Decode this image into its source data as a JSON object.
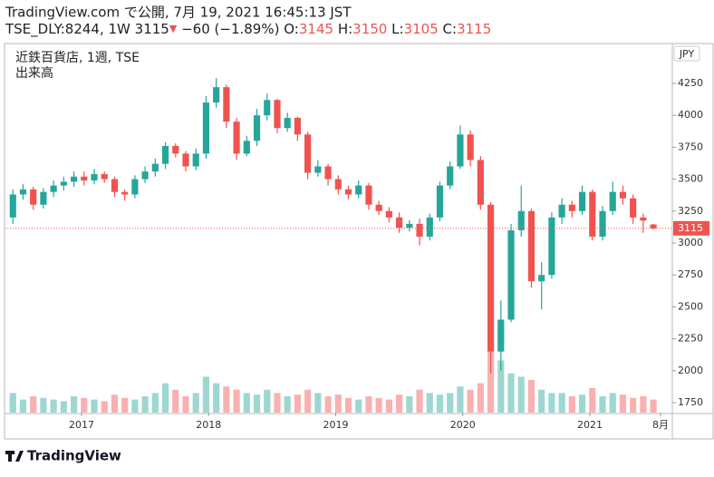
{
  "header": {
    "published": "TradingView.com で公開, 7月 19, 2021 16:45:13 JST",
    "symbol": "TSE_DLY:8244, 1W",
    "arrow": "▼",
    "change": "−60 (−1.89%)",
    "o": "O:",
    "h": "H:",
    "l": "L:",
    "c": "C:"
  },
  "chart_data": {
    "type": "candlestick",
    "title": "近鉄百貨店, 1週, TSE",
    "volume_label": "出来高",
    "currency": "JPY",
    "x": [
      2016.46,
      2016.54,
      2016.62,
      2016.7,
      2016.78,
      2016.86,
      2016.94,
      2017.02,
      2017.1,
      2017.18,
      2017.26,
      2017.34,
      2017.42,
      2017.5,
      2017.58,
      2017.66,
      2017.74,
      2017.82,
      2017.9,
      2017.98,
      2018.06,
      2018.14,
      2018.22,
      2018.3,
      2018.38,
      2018.46,
      2018.54,
      2018.62,
      2018.7,
      2018.78,
      2018.86,
      2018.94,
      2019.02,
      2019.1,
      2019.18,
      2019.26,
      2019.34,
      2019.42,
      2019.5,
      2019.58,
      2019.66,
      2019.74,
      2019.82,
      2019.9,
      2019.98,
      2020.06,
      2020.14,
      2020.22,
      2020.3,
      2020.38,
      2020.46,
      2020.54,
      2020.62,
      2020.7,
      2020.78,
      2020.86,
      2020.94,
      2021.02,
      2021.1,
      2021.18,
      2021.26,
      2021.34,
      2021.42,
      2021.5
    ],
    "open": [
      3200,
      3380,
      3420,
      3300,
      3400,
      3450,
      3480,
      3520,
      3490,
      3540,
      3500,
      3400,
      3380,
      3500,
      3560,
      3620,
      3760,
      3700,
      3600,
      3700,
      4100,
      4220,
      3950,
      3700,
      3800,
      4000,
      4120,
      3900,
      3980,
      3850,
      3550,
      3600,
      3500,
      3420,
      3380,
      3450,
      3300,
      3250,
      3200,
      3120,
      3150,
      3050,
      3200,
      3450,
      3600,
      3850,
      3650,
      3300,
      2150,
      2400,
      3100,
      3250,
      2700,
      2750,
      3200,
      3300,
      3250,
      3400,
      3050,
      3250,
      3400,
      3350,
      3200,
      3145
    ],
    "high": [
      3420,
      3460,
      3440,
      3430,
      3490,
      3520,
      3560,
      3560,
      3580,
      3560,
      3520,
      3420,
      3530,
      3600,
      3660,
      3790,
      3780,
      3720,
      3740,
      4150,
      4290,
      4240,
      3980,
      3840,
      4050,
      4170,
      4130,
      4020,
      3990,
      3870,
      3650,
      3620,
      3530,
      3450,
      3490,
      3470,
      3330,
      3280,
      3240,
      3180,
      3190,
      3230,
      3480,
      3640,
      3920,
      3880,
      3680,
      3320,
      2550,
      3150,
      3450,
      3270,
      2850,
      3240,
      3350,
      3330,
      3450,
      3420,
      3290,
      3480,
      3450,
      3380,
      3230,
      3150
    ],
    "low": [
      3150,
      3340,
      3260,
      3270,
      3360,
      3410,
      3440,
      3450,
      3460,
      3470,
      3360,
      3330,
      3350,
      3470,
      3520,
      3580,
      3670,
      3560,
      3570,
      3660,
      4060,
      3900,
      3650,
      3680,
      3760,
      3960,
      3860,
      3870,
      3800,
      3500,
      3520,
      3450,
      3380,
      3340,
      3350,
      3260,
      3220,
      3160,
      3080,
      3090,
      2980,
      3020,
      3170,
      3420,
      3580,
      3600,
      3260,
      1980,
      2000,
      2380,
      3050,
      2650,
      2480,
      2720,
      3150,
      3200,
      3220,
      3020,
      3020,
      3220,
      3300,
      3150,
      3080,
      3105
    ],
    "close": [
      3380,
      3420,
      3300,
      3400,
      3450,
      3480,
      3520,
      3490,
      3540,
      3500,
      3400,
      3380,
      3500,
      3560,
      3620,
      3760,
      3700,
      3600,
      3700,
      4100,
      4220,
      3950,
      3700,
      3800,
      4000,
      4120,
      3900,
      3980,
      3850,
      3550,
      3600,
      3500,
      3420,
      3380,
      3450,
      3300,
      3250,
      3200,
      3120,
      3150,
      3050,
      3200,
      3450,
      3600,
      3850,
      3650,
      3300,
      2150,
      2400,
      3100,
      3250,
      2700,
      2750,
      3200,
      3300,
      3250,
      3400,
      3050,
      3250,
      3400,
      3350,
      3200,
      3175,
      3115
    ],
    "volume": [
      60,
      40,
      50,
      45,
      40,
      35,
      50,
      45,
      40,
      35,
      55,
      45,
      40,
      50,
      60,
      90,
      70,
      50,
      60,
      110,
      90,
      80,
      70,
      60,
      55,
      70,
      60,
      50,
      55,
      70,
      60,
      50,
      55,
      45,
      40,
      50,
      45,
      40,
      55,
      50,
      70,
      60,
      55,
      60,
      80,
      70,
      90,
      200,
      160,
      120,
      110,
      100,
      70,
      60,
      60,
      50,
      55,
      75,
      50,
      60,
      55,
      45,
      50,
      40
    ],
    "up_color": "#26a69a",
    "down_color": "#ef5350",
    "xlim": [
      2016.394,
      2021.649
    ],
    "xticks": [
      {
        "value": 2017,
        "label": "2017"
      },
      {
        "value": 2018,
        "label": "2018"
      },
      {
        "value": 2019,
        "label": "2019"
      },
      {
        "value": 2020,
        "label": "2020"
      },
      {
        "value": 2021,
        "label": "2021"
      },
      {
        "value": 2021.556,
        "label": "8月"
      }
    ],
    "ylim": [
      1672,
      4562
    ],
    "yticks": [
      1750,
      2000,
      2250,
      2500,
      2750,
      3000,
      3250,
      3500,
      3750,
      4000,
      4250
    ]
  },
  "footer": {
    "brand": "TradingView"
  }
}
